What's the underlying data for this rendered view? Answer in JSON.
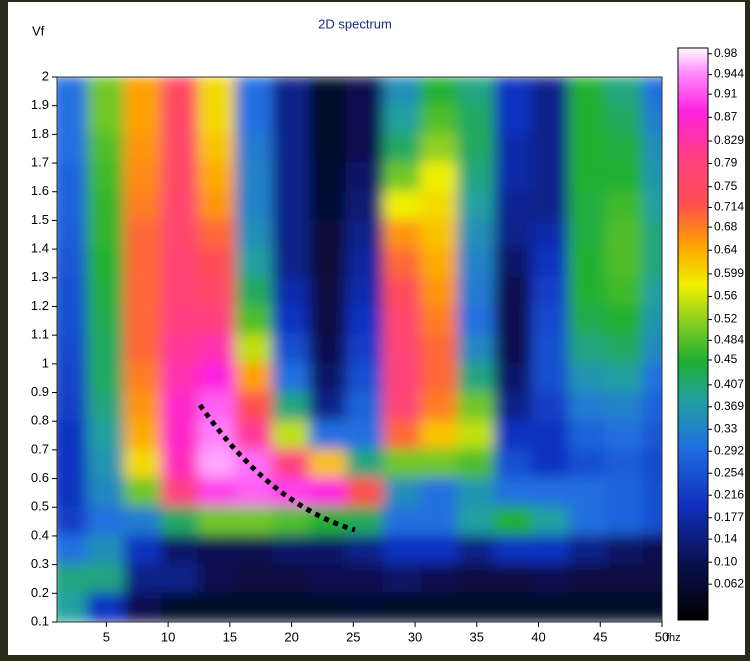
{
  "chart_data": {
    "type": "heatmap",
    "title": "2D spectrum",
    "y_label": "Vf",
    "x_label": "fhz",
    "xlim": [
      1,
      50
    ],
    "ylim": [
      0.1,
      2
    ],
    "xticks": [
      5,
      10,
      15,
      20,
      25,
      30,
      35,
      40,
      45,
      50
    ],
    "yticks": [
      0.1,
      0.2,
      0.3,
      0.4,
      0.5,
      0.6,
      0.7,
      0.8,
      0.9,
      1,
      1.1,
      1.2,
      1.3,
      1.4,
      1.5,
      1.6,
      1.7,
      1.8,
      1.9,
      2
    ],
    "x": [
      2,
      5,
      8,
      11,
      14,
      17,
      20,
      23,
      26,
      29,
      32,
      35,
      38,
      41,
      44,
      47,
      50
    ],
    "y": [
      1.95,
      1.85,
      1.75,
      1.65,
      1.55,
      1.45,
      1.35,
      1.25,
      1.15,
      1.05,
      0.95,
      0.85,
      0.75,
      0.65,
      0.55,
      0.45,
      0.35,
      0.25,
      0.15
    ],
    "z": [
      [
        0.3,
        0.5,
        0.65,
        0.75,
        0.6,
        0.3,
        0.15,
        0.05,
        0.1,
        0.35,
        0.45,
        0.4,
        0.2,
        0.15,
        0.45,
        0.4,
        0.3
      ],
      [
        0.3,
        0.5,
        0.65,
        0.76,
        0.6,
        0.3,
        0.15,
        0.05,
        0.1,
        0.38,
        0.48,
        0.42,
        0.2,
        0.15,
        0.45,
        0.42,
        0.32
      ],
      [
        0.3,
        0.48,
        0.66,
        0.76,
        0.62,
        0.32,
        0.15,
        0.05,
        0.1,
        0.42,
        0.52,
        0.42,
        0.18,
        0.15,
        0.45,
        0.44,
        0.35
      ],
      [
        0.28,
        0.47,
        0.67,
        0.76,
        0.64,
        0.33,
        0.15,
        0.06,
        0.12,
        0.5,
        0.58,
        0.4,
        0.18,
        0.15,
        0.45,
        0.45,
        0.36
      ],
      [
        0.28,
        0.46,
        0.68,
        0.77,
        0.66,
        0.33,
        0.15,
        0.06,
        0.13,
        0.58,
        0.6,
        0.38,
        0.16,
        0.15,
        0.44,
        0.47,
        0.38
      ],
      [
        0.27,
        0.46,
        0.7,
        0.77,
        0.7,
        0.35,
        0.15,
        0.07,
        0.15,
        0.66,
        0.62,
        0.35,
        0.15,
        0.18,
        0.44,
        0.48,
        0.4
      ],
      [
        0.26,
        0.45,
        0.7,
        0.78,
        0.73,
        0.38,
        0.15,
        0.07,
        0.17,
        0.7,
        0.64,
        0.33,
        0.12,
        0.2,
        0.45,
        0.48,
        0.4
      ],
      [
        0.25,
        0.44,
        0.7,
        0.78,
        0.76,
        0.42,
        0.18,
        0.08,
        0.18,
        0.74,
        0.66,
        0.32,
        0.1,
        0.22,
        0.45,
        0.47,
        0.38
      ],
      [
        0.25,
        0.43,
        0.7,
        0.8,
        0.8,
        0.48,
        0.2,
        0.08,
        0.2,
        0.77,
        0.68,
        0.3,
        0.1,
        0.24,
        0.43,
        0.45,
        0.36
      ],
      [
        0.24,
        0.42,
        0.7,
        0.82,
        0.84,
        0.55,
        0.25,
        0.1,
        0.22,
        0.78,
        0.7,
        0.34,
        0.1,
        0.25,
        0.4,
        0.42,
        0.34
      ],
      [
        0.23,
        0.42,
        0.68,
        0.84,
        0.88,
        0.65,
        0.3,
        0.12,
        0.25,
        0.79,
        0.7,
        0.4,
        0.12,
        0.25,
        0.36,
        0.38,
        0.3
      ],
      [
        0.22,
        0.4,
        0.66,
        0.86,
        0.92,
        0.72,
        0.4,
        0.15,
        0.28,
        0.78,
        0.68,
        0.5,
        0.15,
        0.22,
        0.32,
        0.33,
        0.28
      ],
      [
        0.2,
        0.38,
        0.64,
        0.86,
        0.94,
        0.82,
        0.55,
        0.3,
        0.3,
        0.7,
        0.62,
        0.55,
        0.2,
        0.2,
        0.28,
        0.3,
        0.26
      ],
      [
        0.2,
        0.36,
        0.6,
        0.85,
        0.96,
        0.93,
        0.8,
        0.62,
        0.4,
        0.5,
        0.5,
        0.48,
        0.25,
        0.2,
        0.25,
        0.27,
        0.24
      ],
      [
        0.2,
        0.34,
        0.5,
        0.8,
        0.9,
        0.92,
        0.9,
        0.88,
        0.72,
        0.35,
        0.3,
        0.36,
        0.3,
        0.3,
        0.3,
        0.28,
        0.25
      ],
      [
        0.22,
        0.3,
        0.32,
        0.42,
        0.5,
        0.5,
        0.48,
        0.45,
        0.42,
        0.3,
        0.3,
        0.38,
        0.45,
        0.38,
        0.3,
        0.28,
        0.25
      ],
      [
        0.3,
        0.35,
        0.2,
        0.12,
        0.1,
        0.1,
        0.12,
        0.12,
        0.15,
        0.2,
        0.2,
        0.15,
        0.2,
        0.2,
        0.15,
        0.12,
        0.1
      ],
      [
        0.4,
        0.4,
        0.15,
        0.15,
        0.1,
        0.08,
        0.08,
        0.1,
        0.1,
        0.12,
        0.1,
        0.08,
        0.08,
        0.1,
        0.08,
        0.08,
        0.08
      ],
      [
        0.38,
        0.2,
        0.1,
        0.05,
        0.05,
        0.05,
        0.05,
        0.05,
        0.06,
        0.05,
        0.05,
        0.05,
        0.05,
        0.05,
        0.05,
        0.05,
        0.05
      ]
    ],
    "zlim": [
      0,
      0.99
    ],
    "zticks": [
      0.98,
      0.944,
      0.91,
      0.87,
      0.829,
      0.79,
      0.75,
      0.714,
      0.68,
      0.64,
      0.599,
      0.56,
      0.52,
      0.484,
      0.45,
      0.407,
      0.369,
      0.33,
      0.292,
      0.254,
      0.216,
      0.177,
      0.14,
      {
        "value": 0.1,
        "label": "0.10"
      },
      0.062
    ],
    "colorscale": [
      {
        "value": 0,
        "color": "#000000"
      },
      {
        "value": 0.1,
        "color": "#0a1050"
      },
      {
        "value": 0.2,
        "color": "#1030c0"
      },
      {
        "value": 0.3,
        "color": "#2070e0"
      },
      {
        "value": 0.38,
        "color": "#20a0a0"
      },
      {
        "value": 0.45,
        "color": "#20b030"
      },
      {
        "value": 0.52,
        "color": "#90d020"
      },
      {
        "value": 0.58,
        "color": "#f0f000"
      },
      {
        "value": 0.65,
        "color": "#ffa000"
      },
      {
        "value": 0.72,
        "color": "#ff5050"
      },
      {
        "value": 0.8,
        "color": "#ff4080"
      },
      {
        "value": 0.88,
        "color": "#ff20e0"
      },
      {
        "value": 0.95,
        "color": "#ff90ff"
      },
      {
        "value": 1,
        "color": "#ffffff"
      }
    ]
  }
}
